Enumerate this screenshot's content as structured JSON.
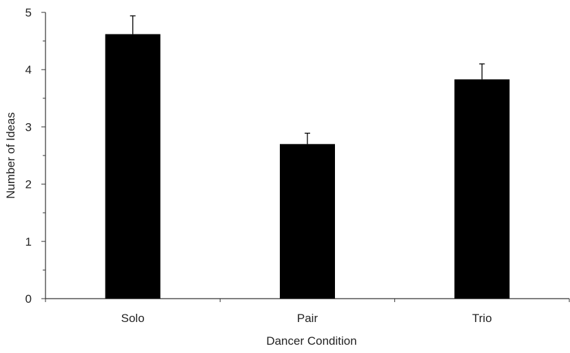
{
  "chart_data": {
    "type": "bar",
    "title": "",
    "xlabel": "Dancer Condition",
    "ylabel": "Number of Ideas",
    "categories": [
      "Solo",
      "Pair",
      "Trio"
    ],
    "values": [
      4.62,
      2.7,
      3.83
    ],
    "error_plus": [
      0.32,
      0.19,
      0.27
    ],
    "ylim": [
      0,
      5
    ],
    "yticks": [
      0,
      1,
      2,
      3,
      4,
      5
    ],
    "grid": false,
    "bar_color": "#000000"
  }
}
